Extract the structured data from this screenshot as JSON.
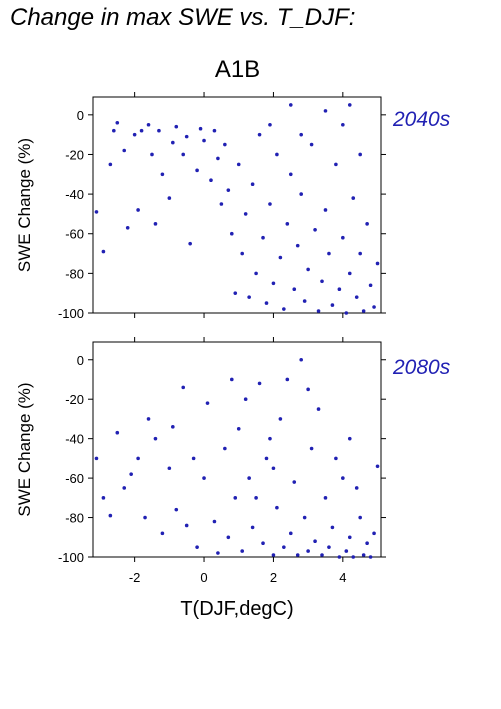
{
  "title": "Change in max SWE vs. T_DJF:",
  "chart_data": {
    "type": "scatter",
    "subtitle": "A1B",
    "xlabel": "T(DJF,degC)",
    "ylabel": "SWE Change (%)",
    "xlim": [
      -3.2,
      5.1
    ],
    "ylim": [
      -100,
      9
    ],
    "xticks": [
      "-2",
      "0",
      "2",
      "4"
    ],
    "yticks": [
      "0",
      "-20",
      "-40",
      "-60",
      "-80",
      "-100"
    ],
    "point_color": "#2121b3",
    "panels": [
      {
        "period": "2040s",
        "points": [
          [
            -3.1,
            -49
          ],
          [
            -2.9,
            -69
          ],
          [
            -2.7,
            -25
          ],
          [
            -2.6,
            -8
          ],
          [
            -2.5,
            -4
          ],
          [
            -2.3,
            -18
          ],
          [
            -2.2,
            -57
          ],
          [
            -2.0,
            -10
          ],
          [
            -1.9,
            -48
          ],
          [
            -1.8,
            -8
          ],
          [
            -1.6,
            -5
          ],
          [
            -1.5,
            -20
          ],
          [
            -1.4,
            -55
          ],
          [
            -1.3,
            -8
          ],
          [
            -1.2,
            -30
          ],
          [
            -1.0,
            -42
          ],
          [
            -0.9,
            -14
          ],
          [
            -0.8,
            -6
          ],
          [
            -0.6,
            -20
          ],
          [
            -0.5,
            -11
          ],
          [
            -0.4,
            -65
          ],
          [
            -0.2,
            -28
          ],
          [
            -0.1,
            -7
          ],
          [
            0.0,
            -13
          ],
          [
            0.2,
            -33
          ],
          [
            0.3,
            -8
          ],
          [
            0.4,
            -22
          ],
          [
            0.5,
            -45
          ],
          [
            0.6,
            -15
          ],
          [
            0.7,
            -38
          ],
          [
            0.8,
            -60
          ],
          [
            0.9,
            -90
          ],
          [
            1.0,
            -25
          ],
          [
            1.1,
            -70
          ],
          [
            1.2,
            -50
          ],
          [
            1.3,
            -92
          ],
          [
            1.4,
            -35
          ],
          [
            1.5,
            -80
          ],
          [
            1.6,
            -10
          ],
          [
            1.7,
            -62
          ],
          [
            1.8,
            -95
          ],
          [
            1.9,
            -45
          ],
          [
            2.0,
            -85
          ],
          [
            2.1,
            -20
          ],
          [
            2.2,
            -72
          ],
          [
            2.3,
            -98
          ],
          [
            2.4,
            -55
          ],
          [
            2.5,
            -30
          ],
          [
            2.6,
            -88
          ],
          [
            2.7,
            -66
          ],
          [
            2.8,
            -40
          ],
          [
            2.9,
            -94
          ],
          [
            3.0,
            -78
          ],
          [
            3.1,
            -15
          ],
          [
            3.2,
            -58
          ],
          [
            3.3,
            -99
          ],
          [
            3.4,
            -84
          ],
          [
            3.5,
            -48
          ],
          [
            3.6,
            -70
          ],
          [
            3.7,
            -96
          ],
          [
            3.8,
            -25
          ],
          [
            3.9,
            -88
          ],
          [
            4.0,
            -62
          ],
          [
            4.1,
            -100
          ],
          [
            4.2,
            -80
          ],
          [
            4.3,
            -42
          ],
          [
            4.4,
            -92
          ],
          [
            4.5,
            -70
          ],
          [
            4.6,
            -99
          ],
          [
            4.7,
            -55
          ],
          [
            4.8,
            -86
          ],
          [
            4.9,
            -97
          ],
          [
            5.0,
            -75
          ],
          [
            4.5,
            -20
          ],
          [
            3.5,
            2
          ],
          [
            2.5,
            5
          ],
          [
            4.0,
            -5
          ],
          [
            4.2,
            5
          ],
          [
            1.9,
            -5
          ],
          [
            2.8,
            -10
          ]
        ]
      },
      {
        "period": "2080s",
        "points": [
          [
            -3.1,
            -50
          ],
          [
            -2.9,
            -70
          ],
          [
            -2.7,
            -79
          ],
          [
            -2.5,
            -37
          ],
          [
            -2.3,
            -65
          ],
          [
            -2.1,
            -58
          ],
          [
            -1.9,
            -50
          ],
          [
            -1.7,
            -80
          ],
          [
            -1.6,
            -30
          ],
          [
            -1.4,
            -40
          ],
          [
            -1.2,
            -88
          ],
          [
            -1.0,
            -55
          ],
          [
            -0.9,
            -34
          ],
          [
            -0.8,
            -76
          ],
          [
            -0.6,
            -14
          ],
          [
            -0.5,
            -84
          ],
          [
            -0.3,
            -50
          ],
          [
            -0.2,
            -95
          ],
          [
            0.0,
            -60
          ],
          [
            0.1,
            -22
          ],
          [
            0.3,
            -82
          ],
          [
            0.4,
            -98
          ],
          [
            0.6,
            -45
          ],
          [
            0.7,
            -90
          ],
          [
            0.9,
            -70
          ],
          [
            1.0,
            -35
          ],
          [
            1.1,
            -97
          ],
          [
            1.3,
            -60
          ],
          [
            1.4,
            -85
          ],
          [
            1.6,
            -12
          ],
          [
            1.7,
            -93
          ],
          [
            1.8,
            -50
          ],
          [
            2.0,
            -99
          ],
          [
            2.1,
            -75
          ],
          [
            2.2,
            -30
          ],
          [
            2.3,
            -95
          ],
          [
            2.5,
            -88
          ],
          [
            2.6,
            -62
          ],
          [
            2.7,
            -99
          ],
          [
            2.9,
            -80
          ],
          [
            3.0,
            -97
          ],
          [
            3.1,
            -45
          ],
          [
            3.2,
            -92
          ],
          [
            3.4,
            -99
          ],
          [
            3.5,
            -70
          ],
          [
            3.6,
            -95
          ],
          [
            3.7,
            -85
          ],
          [
            3.9,
            -100
          ],
          [
            4.0,
            -60
          ],
          [
            4.1,
            -97
          ],
          [
            4.2,
            -90
          ],
          [
            4.3,
            -100
          ],
          [
            4.5,
            -80
          ],
          [
            4.6,
            -99
          ],
          [
            4.7,
            -93
          ],
          [
            4.8,
            -100
          ],
          [
            4.9,
            -88
          ],
          [
            5.0,
            -54
          ],
          [
            4.2,
            -40
          ],
          [
            3.3,
            -25
          ],
          [
            2.4,
            -10
          ],
          [
            2.8,
            0
          ],
          [
            1.9,
            -40
          ],
          [
            1.2,
            -20
          ],
          [
            3.8,
            -50
          ],
          [
            4.4,
            -65
          ],
          [
            2.0,
            -55
          ],
          [
            1.5,
            -70
          ],
          [
            0.8,
            -10
          ],
          [
            3.0,
            -15
          ]
        ]
      }
    ]
  }
}
